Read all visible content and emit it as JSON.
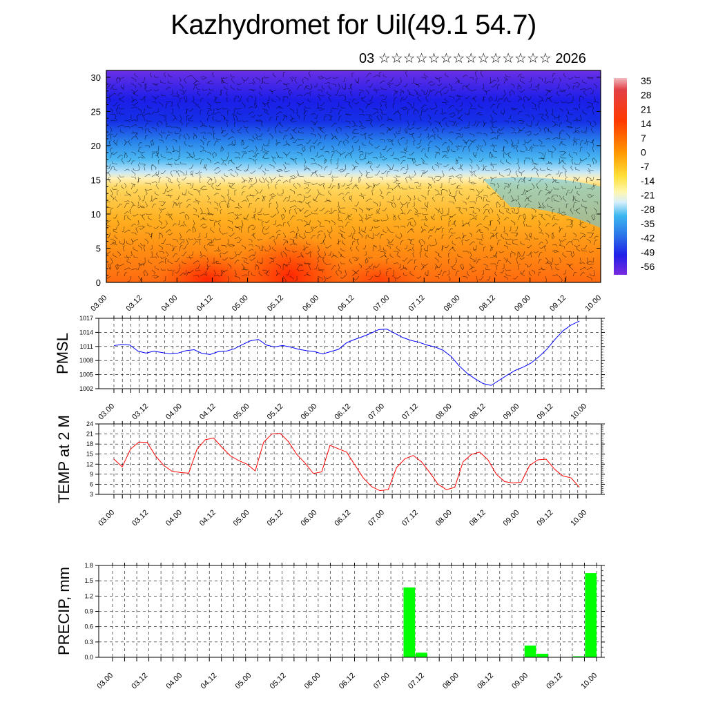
{
  "title": "Kazhydromet for Uil(49.1 54.7)",
  "subtitle": "03 ☆☆☆☆☆☆☆☆☆☆☆☆☆☆ 2026",
  "colors": {
    "pmsl_line": "#0000ff",
    "temp_line": "#ff0000",
    "precip_bar": "#00ff00",
    "grid": "#000000"
  },
  "chart_data": [
    {
      "type": "heatmap",
      "name": "cross-section",
      "x_tick_labels": [
        "03.00",
        "03.12",
        "04.00",
        "04.12",
        "05.00",
        "05.12",
        "06.00",
        "06.12",
        "07.00",
        "07.12",
        "08.00",
        "08.12",
        "09.00",
        "09.12",
        "10.00"
      ],
      "y_tick_labels": [
        "0",
        "5",
        "10",
        "15",
        "20",
        "25",
        "30"
      ],
      "ylim": [
        0,
        31
      ],
      "colorbar_labels": [
        "35",
        "28",
        "21",
        "14",
        "7",
        "0",
        "-7",
        "-14",
        "-21",
        "-28",
        "-35",
        "-42",
        "-49",
        "-56"
      ],
      "colorbar_range": [
        -60,
        40
      ]
    },
    {
      "type": "line",
      "name": "pmsl",
      "ylabel": "PMSL",
      "y_tick_labels": [
        "1017",
        "1014",
        "1011",
        "1008",
        "1005",
        "1002"
      ],
      "ylim": [
        1002,
        1017
      ],
      "x_tick_labels": [
        "03.00",
        "03.12",
        "04.00",
        "04.12",
        "05.00",
        "05.12",
        "06.00",
        "06.12",
        "07.00",
        "07.12",
        "08.00",
        "08.12",
        "09.00",
        "09.12",
        "10.00"
      ],
      "values": [
        1011.2,
        1011.4,
        1011.3,
        1010.0,
        1009.6,
        1010.0,
        1009.7,
        1009.4,
        1009.6,
        1010.1,
        1010.3,
        1009.5,
        1009.3,
        1009.9,
        1010.0,
        1010.5,
        1011.4,
        1012.2,
        1012.5,
        1011.3,
        1010.9,
        1011.2,
        1010.9,
        1010.4,
        1010.1,
        1009.9,
        1009.4,
        1009.9,
        1010.4,
        1011.8,
        1012.5,
        1013.1,
        1013.8,
        1014.6,
        1014.7,
        1013.8,
        1012.9,
        1012.3,
        1011.9,
        1011.3,
        1010.9,
        1010.2,
        1008.9,
        1006.9,
        1005.3,
        1004.1,
        1003.1,
        1002.7,
        1003.8,
        1004.9,
        1005.9,
        1006.6,
        1007.5,
        1008.9,
        1010.5,
        1012.6,
        1014.4,
        1015.6,
        1016.4
      ]
    },
    {
      "type": "line",
      "name": "temp",
      "ylabel": "TEMP at 2 M",
      "y_tick_labels": [
        "24",
        "21",
        "18",
        "15",
        "12",
        "9",
        "6",
        "3"
      ],
      "ylim": [
        3,
        24
      ],
      "x_tick_labels": [
        "03.00",
        "03.12",
        "04.00",
        "04.12",
        "05.00",
        "05.12",
        "06.00",
        "06.12",
        "07.00",
        "07.12",
        "08.00",
        "08.12",
        "09.00",
        "09.12",
        "10.00"
      ],
      "values": [
        13.5,
        11.2,
        16.5,
        18.6,
        18.5,
        14.5,
        11.6,
        9.9,
        9.5,
        9.3,
        16.5,
        19.3,
        19.8,
        17.0,
        14.5,
        13.1,
        12.0,
        10.0,
        18.5,
        21.0,
        21.2,
        18.7,
        14.9,
        12.3,
        9.2,
        9.7,
        17.6,
        16.6,
        15.6,
        11.7,
        7.9,
        5.3,
        4.1,
        4.4,
        11.0,
        13.6,
        14.6,
        12.7,
        9.5,
        6.0,
        4.4,
        5.1,
        12.7,
        14.9,
        15.6,
        13.3,
        9.0,
        6.8,
        6.4,
        6.6,
        11.6,
        13.3,
        13.5,
        10.5,
        8.5,
        7.9,
        5.1
      ]
    },
    {
      "type": "bar",
      "name": "precip",
      "ylabel": "PRECIP, mm",
      "y_tick_labels": [
        "1.8",
        "1.5",
        "1.2",
        "0.9",
        "0.6",
        "0.3",
        "0.0"
      ],
      "ylim": [
        0,
        1.8
      ],
      "x_tick_labels": [
        "03.00",
        "03.12",
        "04.00",
        "04.12",
        "05.00",
        "05.12",
        "06.00",
        "06.12",
        "07.00",
        "07.12",
        "08.00",
        "08.12",
        "09.00",
        "09.12",
        "10.00"
      ],
      "bars": [
        {
          "x": 6.25,
          "value": 1.37
        },
        {
          "x": 6.5,
          "value": 0.09
        },
        {
          "x": 8.75,
          "value": 0.23
        },
        {
          "x": 9.0,
          "value": 0.07
        },
        {
          "x": 9.75,
          "value": 0.02
        },
        {
          "x": 10.0,
          "value": 1.65
        }
      ]
    }
  ]
}
